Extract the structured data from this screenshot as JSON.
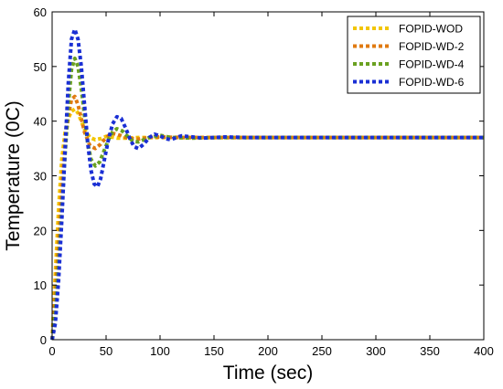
{
  "chart_data": {
    "type": "line",
    "title": "",
    "xlabel": "Time (sec)",
    "ylabel": "Temperature (0C)",
    "xlim": [
      0,
      400
    ],
    "ylim": [
      0,
      60
    ],
    "xticks": [
      0,
      50,
      100,
      150,
      200,
      250,
      300,
      350,
      400
    ],
    "yticks": [
      0,
      10,
      20,
      30,
      40,
      50,
      60
    ],
    "grid": false,
    "legend_position": "top-right",
    "series": [
      {
        "name": "FOPID-WOD",
        "color": "#f2c500",
        "line_style": "dotted",
        "x": [
          0,
          3,
          6,
          9,
          12,
          15,
          18,
          21,
          24,
          27,
          30,
          35,
          40,
          45,
          50,
          55,
          60,
          70,
          80,
          90,
          100,
          120,
          150,
          200,
          300,
          400
        ],
        "y": [
          0,
          12,
          24,
          33,
          38,
          40.5,
          41.8,
          42.2,
          41.5,
          40,
          38.5,
          37,
          36.6,
          36.8,
          37.2,
          37.1,
          36.9,
          36.9,
          37,
          37,
          37,
          37,
          37,
          37,
          37,
          37
        ]
      },
      {
        "name": "FOPID-WD-2",
        "color": "#e07a10",
        "line_style": "dotted",
        "x": [
          0,
          3,
          6,
          9,
          12,
          15,
          18,
          21,
          24,
          27,
          30,
          35,
          40,
          45,
          50,
          55,
          60,
          70,
          80,
          90,
          100,
          120,
          150,
          200,
          300,
          400
        ],
        "y": [
          0,
          8,
          18,
          28,
          36,
          41,
          44,
          44.5,
          43,
          40.5,
          38,
          35.5,
          35,
          35.8,
          37,
          37.8,
          37.6,
          36.9,
          36.7,
          37,
          37.1,
          37,
          37,
          37,
          37,
          37
        ]
      },
      {
        "name": "FOPID-WD-4",
        "color": "#6aa121",
        "line_style": "dotted",
        "x": [
          0,
          3,
          6,
          9,
          12,
          15,
          18,
          21,
          24,
          27,
          30,
          33,
          36,
          40,
          44,
          48,
          52,
          56,
          60,
          65,
          70,
          75,
          80,
          90,
          100,
          110,
          130,
          160,
          200,
          300,
          400
        ],
        "y": [
          0,
          5,
          14,
          24,
          34,
          43,
          49.5,
          51.5,
          50,
          46,
          41,
          36,
          33,
          31.8,
          32.5,
          34.5,
          36.5,
          38,
          38.6,
          38.2,
          37.2,
          36.3,
          36.2,
          37,
          37.4,
          37,
          36.9,
          37,
          37,
          37,
          37
        ]
      },
      {
        "name": "FOPID-WD-6",
        "color": "#1a2fd4",
        "line_style": "dotted",
        "x": [
          0,
          3,
          6,
          9,
          12,
          15,
          18,
          21,
          24,
          27,
          30,
          33,
          36,
          39,
          42,
          45,
          48,
          52,
          56,
          60,
          64,
          68,
          72,
          76,
          80,
          85,
          90,
          95,
          100,
          105,
          110,
          115,
          120,
          130,
          140,
          150,
          160,
          180,
          200,
          300,
          400
        ],
        "y": [
          0,
          3,
          11,
          22,
          35,
          47,
          55,
          56.8,
          55,
          50,
          43,
          36,
          31,
          28.5,
          28,
          29.5,
          32.5,
          36.5,
          39.5,
          40.8,
          40.5,
          38.8,
          36.8,
          35.3,
          35,
          35.8,
          37,
          37.6,
          37.3,
          36.8,
          36.6,
          37,
          37.3,
          37.1,
          36.9,
          37,
          37.1,
          37,
          37,
          37,
          37
        ]
      }
    ]
  }
}
